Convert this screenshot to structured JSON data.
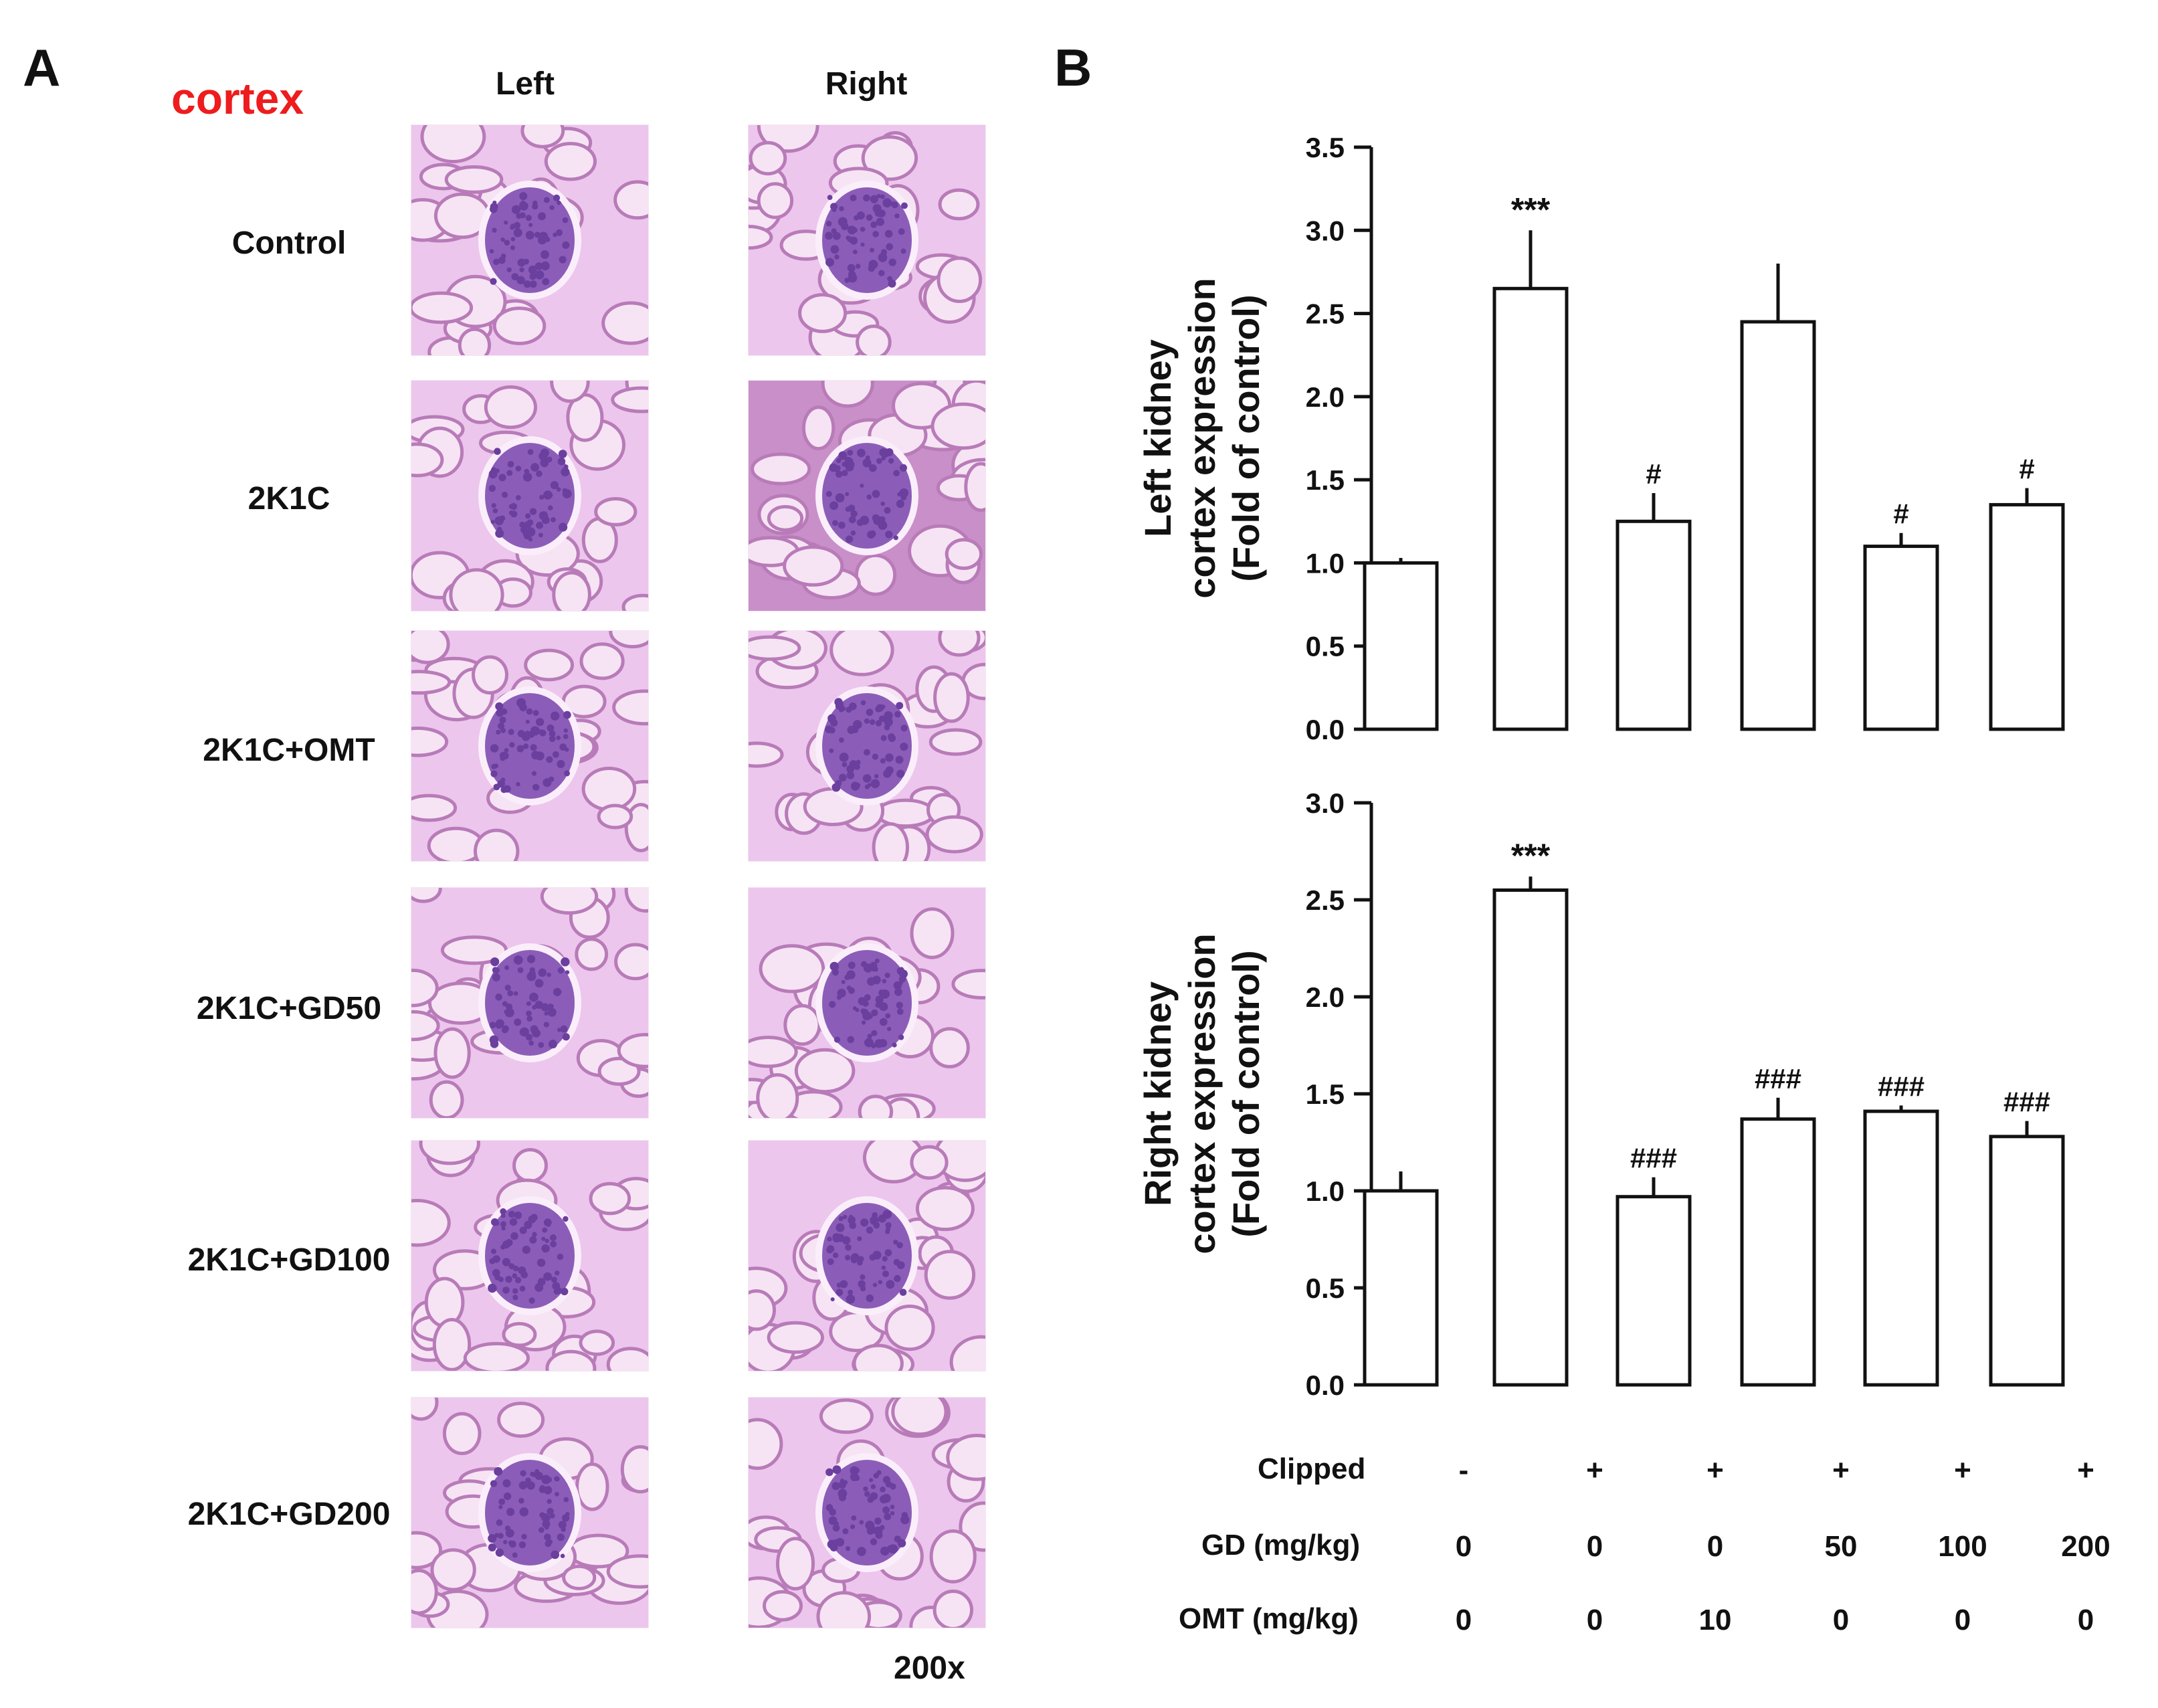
{
  "panel_a": {
    "letter": "A",
    "tissue_label": "cortex",
    "column_headers": [
      "Left",
      "Right"
    ],
    "row_labels": [
      "Control",
      "2K1C",
      "2K1C+OMT",
      "2K1C+GD50",
      "2K1C+GD100",
      "2K1C+GD200"
    ],
    "magnification": "200x",
    "colors": {
      "tissue_label": "#ee1c1c",
      "stain_background": "#ecc6ec",
      "nuclei": "#6a3f9e"
    }
  },
  "panel_b": {
    "letter": "B",
    "table": {
      "row_labels": [
        "Clipped",
        "GD (mg/kg)",
        "OMT (mg/kg)"
      ],
      "rows": [
        [
          "-",
          "+",
          "+",
          "+",
          "+",
          "+"
        ],
        [
          "0",
          "0",
          "0",
          "50",
          "100",
          "200"
        ],
        [
          "0",
          "0",
          "10",
          "0",
          "0",
          "0"
        ]
      ]
    }
  },
  "chart_data": [
    {
      "type": "bar",
      "ylabel_lines": [
        "Left kidney",
        "cortex expression",
        "(Fold of control)"
      ],
      "ylim": [
        0,
        3.5
      ],
      "yticks": [
        "0.0",
        "0.5",
        "1.0",
        "1.5",
        "2.0",
        "2.5",
        "3.0",
        "3.5"
      ],
      "values": [
        1.0,
        2.65,
        1.25,
        2.45,
        1.1,
        1.35
      ],
      "errors": [
        0.03,
        0.35,
        0.17,
        0.35,
        0.08,
        0.1
      ],
      "annotations": [
        "",
        "***",
        "#",
        "",
        "#",
        "#"
      ]
    },
    {
      "type": "bar",
      "ylabel_lines": [
        "Right kidney",
        "cortex expression",
        "(Fold of control)"
      ],
      "ylim": [
        0,
        3.0
      ],
      "yticks": [
        "0.0",
        "0.5",
        "1.0",
        "1.5",
        "2.0",
        "2.5",
        "3.0"
      ],
      "values": [
        1.0,
        2.55,
        0.97,
        1.37,
        1.41,
        1.28
      ],
      "errors": [
        0.1,
        0.07,
        0.1,
        0.11,
        0.03,
        0.08
      ],
      "annotations": [
        "",
        "***",
        "###",
        "###",
        "###",
        "###"
      ]
    }
  ]
}
